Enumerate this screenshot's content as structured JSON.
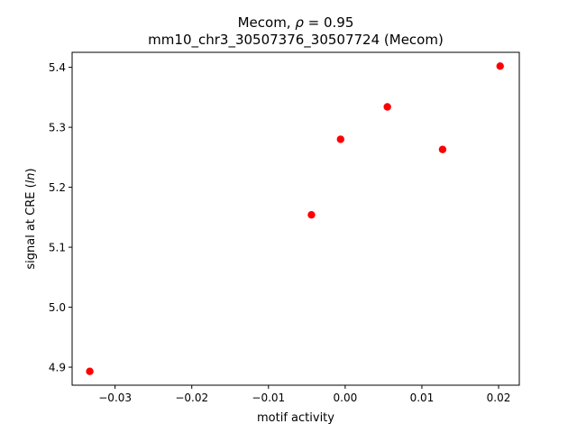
{
  "chart_data": {
    "type": "scatter",
    "title_prefix": "Mecom, ",
    "title_rho_symbol": "ρ",
    "title_rho_value": " = 0.95",
    "subtitle": "mm10_chr3_30507376_30507724 (Mecom)",
    "xlabel": "motif activity",
    "ylabel_prefix": "signal at CRE (",
    "ylabel_italic": "ln",
    "ylabel_suffix": ")",
    "xlim": [
      -0.0356,
      0.0227
    ],
    "ylim": [
      4.87,
      5.425
    ],
    "xticks": [
      -0.03,
      -0.02,
      -0.01,
      0.0,
      0.01,
      0.02
    ],
    "xtick_labels": [
      "−0.03",
      "−0.02",
      "−0.01",
      "0.00",
      "0.01",
      "0.02"
    ],
    "yticks": [
      4.9,
      5.0,
      5.1,
      5.2,
      5.3,
      5.4
    ],
    "ytick_labels": [
      "4.9",
      "5.0",
      "5.1",
      "5.2",
      "5.3",
      "5.4"
    ],
    "grid": false,
    "marker_color": "#ff0000",
    "points": [
      {
        "x": -0.0333,
        "y": 4.893
      },
      {
        "x": -0.0044,
        "y": 5.154
      },
      {
        "x": -0.0006,
        "y": 5.28
      },
      {
        "x": 0.0055,
        "y": 5.334
      },
      {
        "x": 0.0127,
        "y": 5.263
      },
      {
        "x": 0.0202,
        "y": 5.402
      }
    ]
  }
}
